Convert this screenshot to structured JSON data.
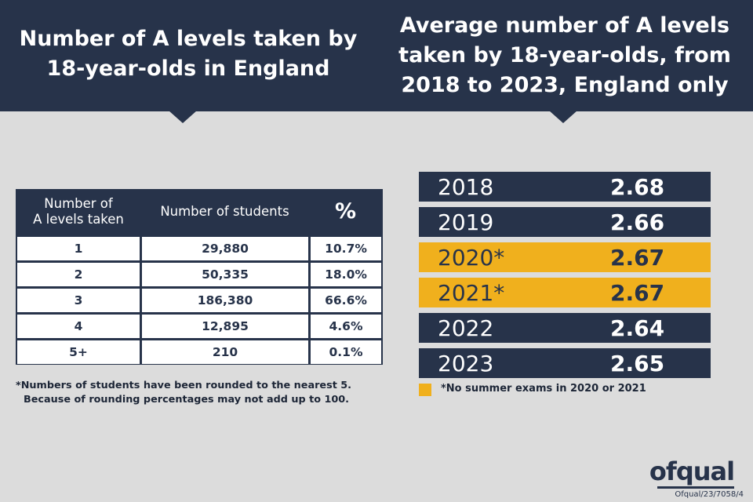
{
  "left_title": "Number of A levels taken by\n18-year-olds in England",
  "right_title": "Average number of A levels\ntaken by 18-year-olds, from\n2018 to 2023, England only",
  "table": {
    "headers": [
      "Number of\nA levels taken",
      "Number of students",
      "%"
    ],
    "rows": [
      [
        "1",
        "29,880",
        "10.7%"
      ],
      [
        "2",
        "50,335",
        "18.0%"
      ],
      [
        "3",
        "186,380",
        "66.6%"
      ],
      [
        "4",
        "12,895",
        "4.6%"
      ],
      [
        "5+",
        "210",
        "0.1%"
      ]
    ]
  },
  "footnote": {
    "line1": "*Numbers of students have been rounded to the nearest 5.",
    "line2": "Because of rounding percentages may not add up to 100."
  },
  "averages": [
    {
      "year": "2018",
      "value": "2.68",
      "highlight": false
    },
    {
      "year": "2019",
      "value": "2.66",
      "highlight": false
    },
    {
      "year": "2020*",
      "value": "2.67",
      "highlight": true
    },
    {
      "year": "2021*",
      "value": "2.67",
      "highlight": true
    },
    {
      "year": "2022",
      "value": "2.64",
      "highlight": false
    },
    {
      "year": "2023",
      "value": "2.65",
      "highlight": false
    }
  ],
  "legend": "*No summer exams in 2020 or 2021",
  "colors": {
    "navy": "#27334a",
    "highlight": "#f0b01d",
    "background": "#dcdcdc"
  },
  "logo": "ofqual",
  "reference": "Ofqual/23/7058/4"
}
